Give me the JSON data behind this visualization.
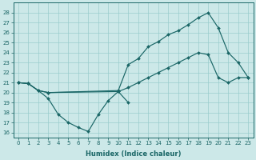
{
  "xlabel": "Humidex (Indice chaleur)",
  "background_color": "#cce8e8",
  "grid_color": "#99cccc",
  "line_color": "#1a6666",
  "xlim": [
    -0.5,
    23.5
  ],
  "ylim": [
    15.5,
    29.0
  ],
  "yticks": [
    16,
    17,
    18,
    19,
    20,
    21,
    22,
    23,
    24,
    25,
    26,
    27,
    28
  ],
  "xticks": [
    0,
    1,
    2,
    3,
    4,
    5,
    6,
    7,
    8,
    9,
    10,
    11,
    12,
    13,
    14,
    15,
    16,
    17,
    18,
    19,
    20,
    21,
    22,
    23
  ],
  "line1_x": [
    0,
    1,
    2,
    3,
    4,
    5,
    6,
    7,
    8,
    9,
    10,
    11
  ],
  "line1_y": [
    21.0,
    20.9,
    20.2,
    19.4,
    17.8,
    17.0,
    16.5,
    16.1,
    17.8,
    19.2,
    20.1,
    19.0
  ],
  "line2_x": [
    0,
    1,
    2,
    3,
    10,
    11,
    12,
    13,
    14,
    15,
    16,
    17,
    18,
    19,
    20,
    21,
    22,
    23
  ],
  "line2_y": [
    21.0,
    20.9,
    20.2,
    20.0,
    20.1,
    20.5,
    21.0,
    21.5,
    22.0,
    22.5,
    23.0,
    23.5,
    24.0,
    23.8,
    21.5,
    21.0,
    21.5,
    21.5
  ],
  "line3_x": [
    0,
    1,
    2,
    3,
    10,
    11,
    12,
    13,
    14,
    15,
    16,
    17,
    18,
    19,
    20,
    21,
    22,
    23
  ],
  "line3_y": [
    21.0,
    20.9,
    20.2,
    20.0,
    20.2,
    22.8,
    23.4,
    24.6,
    25.1,
    25.8,
    26.2,
    26.8,
    27.5,
    28.0,
    26.5,
    24.0,
    23.0,
    21.5
  ]
}
